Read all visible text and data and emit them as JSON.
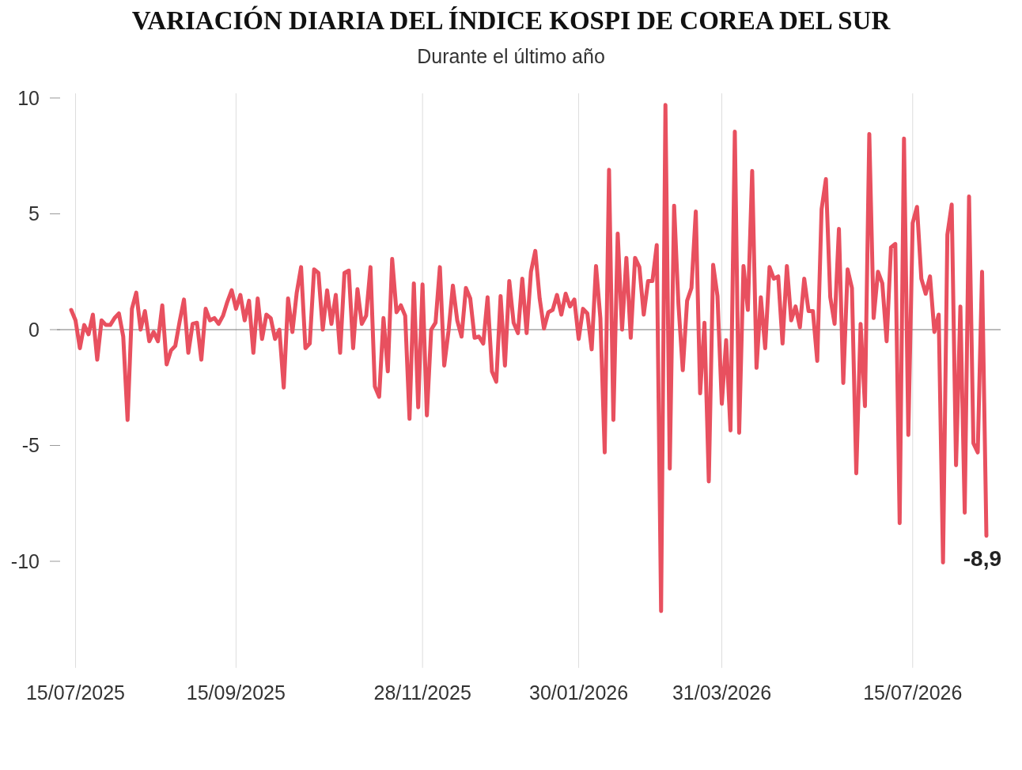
{
  "chart_data": {
    "type": "line",
    "title": "VARIACIÓN DIARIA DEL ÍNDICE KOSPI DE COREA DEL SUR",
    "subtitle": "Durante el último año",
    "categories": [
      null,
      "15/07/2025",
      null,
      null,
      null,
      null,
      null,
      null,
      null,
      null,
      null,
      null,
      null,
      null,
      null,
      null,
      null,
      null,
      null,
      null,
      null,
      null,
      null,
      null,
      null,
      null,
      null,
      null,
      null,
      null,
      null,
      null,
      null,
      null,
      null,
      null,
      null,
      null,
      "15/09/2025",
      null,
      null,
      null,
      null,
      null,
      null,
      null,
      null,
      null,
      null,
      null,
      null,
      null,
      null,
      null,
      null,
      null,
      null,
      null,
      null,
      null,
      null,
      null,
      null,
      null,
      null,
      null,
      null,
      null,
      null,
      null,
      null,
      null,
      null,
      null,
      null,
      null,
      null,
      null,
      null,
      null,
      null,
      "28/11/2025",
      null,
      null,
      null,
      null,
      null,
      null,
      null,
      null,
      null,
      null,
      null,
      null,
      null,
      null,
      null,
      null,
      null,
      null,
      null,
      null,
      null,
      null,
      null,
      null,
      null,
      null,
      null,
      null,
      null,
      null,
      null,
      null,
      null,
      null,
      null,
      "30/01/2026",
      null,
      null,
      null,
      null,
      null,
      null,
      null,
      null,
      null,
      null,
      null,
      null,
      null,
      null,
      null,
      null,
      null,
      null,
      null,
      null,
      null,
      null,
      null,
      null,
      null,
      null,
      null,
      null,
      null,
      null,
      null,
      null,
      "31/03/2026",
      null,
      null,
      null,
      null,
      null,
      null,
      null,
      null,
      null,
      null,
      null,
      null,
      null,
      null,
      null,
      null,
      null,
      null,
      null,
      null,
      null,
      null,
      null,
      null,
      null,
      null,
      null,
      null,
      null,
      null,
      null,
      null,
      null,
      null,
      null,
      null,
      null,
      null,
      null,
      null,
      null,
      null,
      null,
      "15/07/2026",
      null,
      null,
      null,
      null,
      null,
      null,
      null,
      null,
      null,
      null,
      null,
      null,
      null,
      null,
      null,
      null,
      null
    ],
    "series": [
      {
        "color": "#e8505f",
        "values": [
          0.85,
          0.4,
          -0.8,
          0.2,
          -0.2,
          0.65,
          -1.3,
          0.4,
          0.2,
          0.2,
          0.5,
          0.7,
          -0.3,
          -3.9,
          0.9,
          1.6,
          0,
          0.8,
          -0.5,
          -0.1,
          -0.5,
          1.05,
          -1.5,
          -0.9,
          -0.7,
          0.35,
          1.3,
          -1.0,
          0.25,
          0.3,
          -1.3,
          0.9,
          0.4,
          0.5,
          0.25,
          0.6,
          1.2,
          1.7,
          0.9,
          1.5,
          0.4,
          1.25,
          -1.0,
          1.35,
          -0.4,
          0.65,
          0.5,
          -0.4,
          0,
          -2.5,
          1.35,
          -0.1,
          1.6,
          2.7,
          -0.8,
          -0.6,
          2.6,
          2.45,
          0,
          1.7,
          0.25,
          1.5,
          -1.0,
          2.45,
          2.55,
          -0.8,
          1.75,
          0.25,
          0.6,
          2.7,
          -2.45,
          -2.9,
          0.5,
          -1.8,
          3.05,
          0.75,
          1.05,
          0.6,
          -3.85,
          2.0,
          -3.35,
          1.95,
          -3.7,
          0,
          0.3,
          2.7,
          -1.55,
          -0.05,
          1.9,
          0.4,
          -0.3,
          1.8,
          1.35,
          -0.35,
          -0.3,
          -0.6,
          1.4,
          -1.8,
          -2.25,
          1.45,
          -1.55,
          2.1,
          0.3,
          -0.15,
          2.2,
          -0.15,
          2.5,
          3.4,
          1.35,
          0.05,
          0.75,
          0.85,
          1.5,
          0.65,
          1.55,
          1.0,
          1.3,
          -0.4,
          0.9,
          0.7,
          -0.85,
          2.75,
          0.5,
          -5.3,
          6.9,
          -3.9,
          4.15,
          0,
          3.1,
          -0.35,
          3.1,
          2.7,
          0.65,
          2.1,
          2.1,
          3.65,
          -12.15,
          9.7,
          -6.0,
          5.35,
          1.1,
          -1.75,
          1.25,
          1.8,
          5.1,
          -2.75,
          0.3,
          -6.55,
          2.8,
          1.45,
          -3.2,
          -0.45,
          -4.35,
          8.55,
          -4.45,
          2.75,
          0.85,
          6.85,
          -1.65,
          1.4,
          -0.8,
          2.7,
          2.2,
          2.3,
          -0.6,
          2.75,
          0.4,
          1.0,
          0.1,
          2.2,
          0.8,
          0.8,
          -1.35,
          5.2,
          6.5,
          1.4,
          0.25,
          4.35,
          -2.3,
          2.6,
          1.8,
          -6.2,
          0.25,
          -3.3,
          8.45,
          0.5,
          2.5,
          2.0,
          -0.5,
          3.55,
          3.7,
          -8.35,
          8.25,
          -4.55,
          4.6,
          5.3,
          2.2,
          1.55,
          2.3,
          -0.1,
          0.65,
          -10.05,
          4.1,
          5.4,
          -5.85,
          1.0,
          -7.9,
          5.75,
          -4.9,
          -5.3,
          2.5,
          -8.9
        ]
      }
    ],
    "ylim": [
      -14.6,
      10.2
    ],
    "yticks": [
      10,
      5,
      0,
      {
        "value": -5,
        "label": "-5"
      },
      {
        "value": -10,
        "label": "-10"
      }
    ],
    "grid": "x",
    "ref_lines": [
      {
        "axis": "y",
        "value": 0,
        "color": "#777777"
      }
    ],
    "annotations": [
      "-8,9"
    ]
  }
}
